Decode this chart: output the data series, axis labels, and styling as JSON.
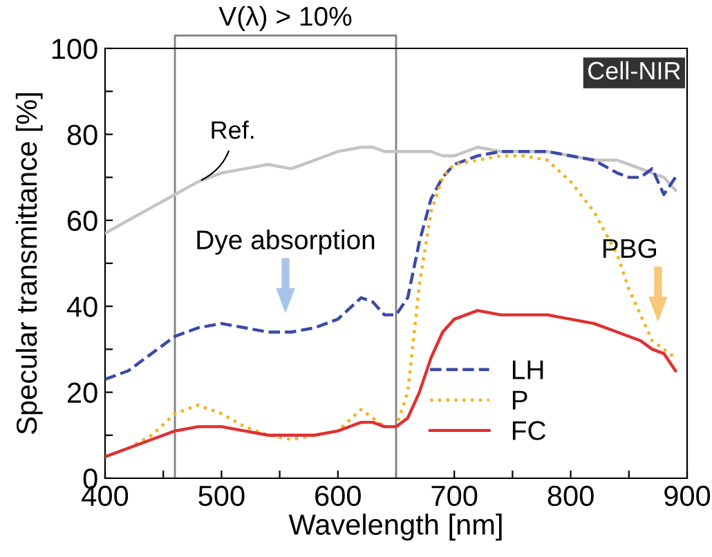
{
  "chart_data": {
    "type": "line",
    "xlabel": "Wavelength [nm]",
    "ylabel": "Specular transmittance [%]",
    "xlim": [
      400,
      900
    ],
    "ylim": [
      0,
      100
    ],
    "xticks": [
      400,
      {
        "value": 450,
        "label": null
      },
      500,
      {
        "value": 550,
        "label": null
      },
      600,
      {
        "value": 650,
        "label": null
      },
      700,
      {
        "value": 750,
        "label": null
      },
      800,
      {
        "value": 850,
        "label": null
      },
      900
    ],
    "yticks": [
      0,
      {
        "value": 10,
        "label": null
      },
      20,
      {
        "value": 30,
        "label": null
      },
      40,
      {
        "value": 50,
        "label": null
      },
      60,
      {
        "value": 70,
        "label": null
      },
      80,
      {
        "value": 90,
        "label": null
      },
      100
    ],
    "grid": false,
    "legend": "lower right",
    "x": [
      400,
      420,
      440,
      460,
      480,
      500,
      520,
      540,
      560,
      580,
      600,
      620,
      630,
      640,
      650,
      660,
      670,
      680,
      690,
      700,
      720,
      740,
      760,
      780,
      800,
      820,
      840,
      850,
      860,
      870,
      880,
      890
    ],
    "series": [
      {
        "name": "Ref.",
        "color": "#c4c4c4",
        "line_style": "solid",
        "values": [
          57,
          60,
          63,
          66,
          69,
          71,
          72,
          73,
          72,
          74,
          76,
          77,
          77,
          76,
          76,
          76,
          76,
          76,
          75,
          75,
          77,
          76,
          76,
          76,
          75,
          74,
          74,
          73,
          72,
          71,
          70,
          67
        ]
      },
      {
        "name": "LH",
        "color": "#3a4aa8",
        "line_style": "dashed",
        "values": [
          23,
          25,
          29,
          33,
          35,
          36,
          35,
          34,
          34,
          35,
          37,
          42,
          41,
          38,
          38,
          42,
          55,
          65,
          70,
          73,
          75,
          76,
          76,
          76,
          75,
          74,
          71,
          70,
          70,
          72,
          66,
          70
        ]
      },
      {
        "name": "P",
        "color": "#f5b21a",
        "line_style": "dotted",
        "values": [
          5,
          7,
          10,
          15,
          17,
          15,
          12,
          10,
          9,
          10,
          11,
          16,
          14,
          12,
          12,
          20,
          45,
          62,
          70,
          73,
          74,
          75,
          75,
          74,
          69,
          62,
          52,
          44,
          38,
          32,
          30,
          28
        ]
      },
      {
        "name": "FC",
        "color": "#e03030",
        "line_style": "solid",
        "values": [
          5,
          7,
          9,
          11,
          12,
          12,
          11,
          10,
          10,
          10,
          11,
          13,
          13,
          12,
          12,
          14,
          20,
          28,
          34,
          37,
          39,
          38,
          38,
          38,
          37,
          36,
          34,
          33,
          32,
          30,
          29,
          25
        ]
      }
    ],
    "ref_lines": [
      {
        "axis": "x",
        "value": 460,
        "label": null,
        "color": "#808080"
      },
      {
        "axis": "x",
        "value": 650,
        "label": null,
        "color": "#808080"
      }
    ],
    "annotations": [
      "V(λ) > 10%",
      {
        "text": "Dye absorption",
        "x": 555,
        "y": 35
      },
      {
        "text": "PBG",
        "x": 875,
        "y": 33
      },
      "Cell-NIR"
    ]
  }
}
